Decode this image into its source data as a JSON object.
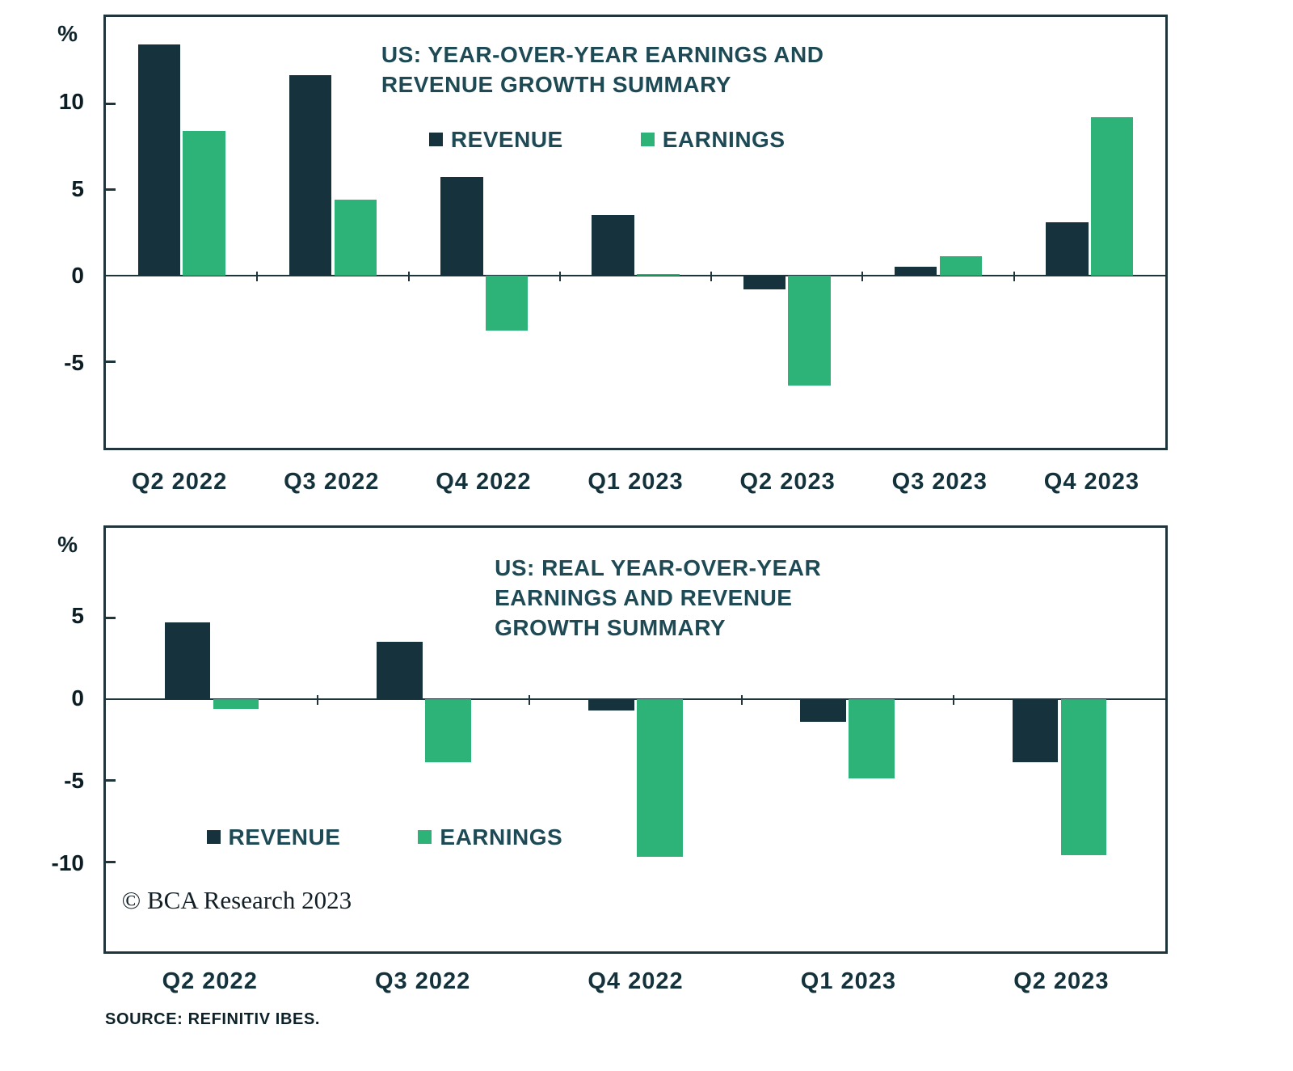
{
  "page": {
    "background": "#ffffff"
  },
  "source": "SOURCE: REFINITIV IBES.",
  "credit": "© BCA Research 2023",
  "colors": {
    "revenue": "#16323c",
    "earnings": "#2db377",
    "heading": "#1d4a55",
    "axis": "#20343c"
  },
  "chart_data": [
    {
      "type": "bar",
      "title": "US: YEAR-OVER-YEAR EARNINGS AND\nREVENUE GROWTH SUMMARY",
      "unit": "%",
      "categories": [
        "Q2 2022",
        "Q3 2022",
        "Q4 2022",
        "Q1 2023",
        "Q2 2023",
        "Q3 2023",
        "Q4 2023"
      ],
      "series": [
        {
          "name": "REVENUE",
          "color": "#16323c",
          "values": [
            13.4,
            11.6,
            5.7,
            3.5,
            -0.8,
            0.5,
            3.1
          ]
        },
        {
          "name": "EARNINGS",
          "color": "#2db377",
          "values": [
            8.4,
            4.4,
            -3.2,
            0.1,
            -6.4,
            1.1,
            9.2
          ]
        }
      ],
      "ylim": [
        -10,
        15
      ],
      "yticks": [
        10,
        5,
        0,
        -5
      ],
      "grid": false,
      "legend_position": "inside-top-center",
      "bar_frac": 0.28
    },
    {
      "type": "bar",
      "title": "US: REAL YEAR-OVER-YEAR\nEARNINGS AND REVENUE\nGROWTH SUMMARY",
      "unit": "%",
      "categories": [
        "Q2 2022",
        "Q3 2022",
        "Q4 2022",
        "Q1 2023",
        "Q2 2023"
      ],
      "series": [
        {
          "name": "REVENUE",
          "color": "#16323c",
          "values": [
            4.7,
            3.5,
            -0.7,
            -1.4,
            -3.9
          ]
        },
        {
          "name": "EARNINGS",
          "color": "#2db377",
          "values": [
            -0.6,
            -3.9,
            -9.7,
            -4.9,
            -9.6
          ]
        }
      ],
      "ylim": [
        -15.5,
        10.5
      ],
      "yticks": [
        5,
        0,
        -5,
        -10
      ],
      "grid": false,
      "legend_position": "inside-bottom-left",
      "bar_frac": 0.216
    }
  ]
}
